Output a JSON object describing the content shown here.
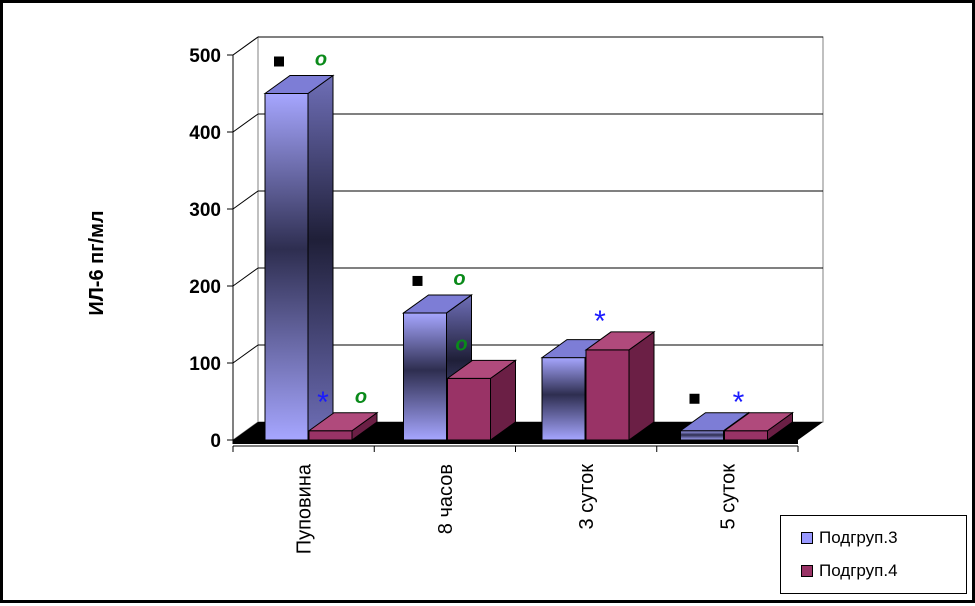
{
  "chart_data": {
    "type": "bar",
    "style": "3d-clustered-column",
    "categories": [
      "Пуповина",
      "8 часов",
      "3 суток",
      "5 суток"
    ],
    "ylabel": "ИЛ-6 пг/мл",
    "ylim": [
      0,
      500
    ],
    "yticks": [
      0,
      100,
      200,
      300,
      400,
      500
    ],
    "grid": true,
    "legend_position": "bottom-right",
    "series": [
      {
        "name": "Подгруп.3",
        "values": [
          450,
          165,
          107,
          12
        ],
        "color": "#9999ff"
      },
      {
        "name": "Подгруп.4",
        "values": [
          12,
          80,
          117,
          12
        ],
        "color": "#993366"
      }
    ],
    "annotations": [
      {
        "category": "Пуповина",
        "series": "Подгруп.3",
        "symbols": [
          "■",
          "o"
        ]
      },
      {
        "category": "Пуповина",
        "series": "Подгруп.4",
        "symbols": [
          "*",
          "o"
        ]
      },
      {
        "category": "8 часов",
        "series": "Подгруп.3",
        "symbols": [
          "■",
          "o"
        ]
      },
      {
        "category": "8 часов",
        "series": "Подгруп.4",
        "symbols": [
          "o"
        ]
      },
      {
        "category": "3 суток",
        "series": "Подгруп.4",
        "symbols": [
          "*"
        ]
      },
      {
        "category": "5 суток",
        "series": "Подгруп.3",
        "symbols": [
          "■"
        ]
      },
      {
        "category": "5 суток",
        "series": "Подгруп.4",
        "symbols": [
          "*"
        ]
      }
    ]
  }
}
